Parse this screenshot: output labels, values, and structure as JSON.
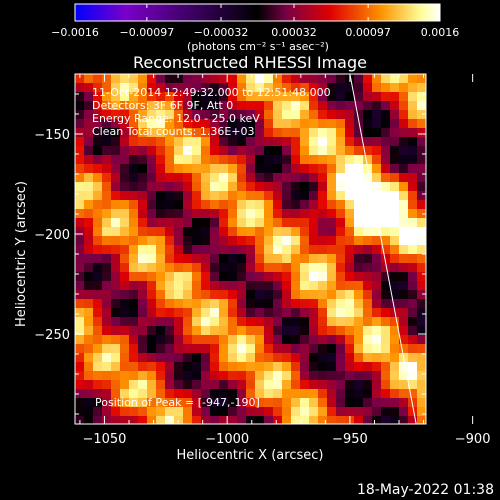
{
  "chart_data": {
    "type": "heatmap",
    "title": "Reconstructed RHESSI Image",
    "xlabel": "Heliocentric X (arcsec)",
    "ylabel": "Heliocentric Y (arcsec)",
    "xlim": [
      -1062,
      -919
    ],
    "ylim": [
      -295,
      -120
    ],
    "x_ticks": [
      -1050,
      -1000,
      -950,
      -900
    ],
    "x_tick_labels": [
      "−1050",
      "−1000",
      "−950",
      "−900"
    ],
    "y_ticks": [
      -150,
      -200,
      -250
    ],
    "y_tick_labels": [
      "−150",
      "−200",
      "−250"
    ],
    "colorbar": {
      "min": -0.0016,
      "max": 0.0016,
      "tick_values": [
        -0.0016,
        -0.00097,
        -0.00032,
        0.00032,
        0.00097,
        0.0016
      ],
      "tick_labels": [
        "−0.0016",
        "−0.00097",
        "−0.00032",
        "0.00032",
        "0.00097",
        "0.0016"
      ],
      "unit_label": "(photons cm⁻² s⁻¹ asec⁻²)",
      "colormap": [
        "#0000ff",
        "#7a00c8",
        "#000000",
        "#7a0046",
        "#e00000",
        "#ff9400",
        "#ffff9c",
        "#ffffff"
      ]
    },
    "info_lines": [
      "11-Oct-2014 12:49:32.000 to 12:51:48.000",
      "Detectors: 3F 6F 9F, Att 0",
      "Energy Range: 12.0 - 25.0 keV",
      "Clean     Total counts: 1.36E+03"
    ],
    "peak_label": "Position of Peak = [-947,-190]",
    "peak_position": [
      -947,
      -190
    ],
    "limb_line_points": [
      [
        -950,
        -120
      ],
      [
        -923,
        -295
      ]
    ],
    "fringe_angle_deg": 45
  },
  "footer": {
    "timestamp": "18-May-2022 01:38"
  }
}
